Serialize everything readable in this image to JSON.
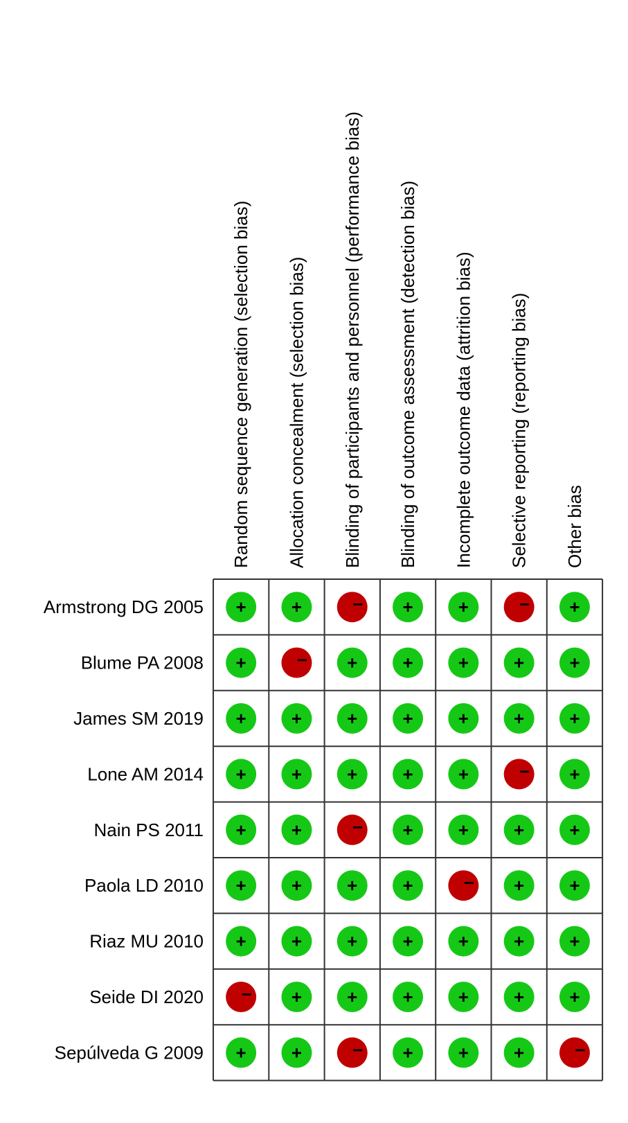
{
  "columns": [
    "Random sequence generation (selection bias)",
    "Allocation concealment (selection bias)",
    "Blinding of participants and personnel (performance bias)",
    "Blinding of outcome assessment (detection bias)",
    "Incomplete outcome data (attrition bias)",
    "Selective reporting (reporting bias)",
    "Other bias"
  ],
  "rows": [
    {
      "label": "Armstrong DG 2005",
      "cells": [
        "+",
        "+",
        "−",
        "+",
        "+",
        "−",
        "+"
      ]
    },
    {
      "label": "Blume PA 2008",
      "cells": [
        "+",
        "−",
        "+",
        "+",
        "+",
        "+",
        "+"
      ]
    },
    {
      "label": "James SM 2019",
      "cells": [
        "+",
        "+",
        "+",
        "+",
        "+",
        "+",
        "+"
      ]
    },
    {
      "label": "Lone AM 2014",
      "cells": [
        "+",
        "+",
        "+",
        "+",
        "+",
        "−",
        "+"
      ]
    },
    {
      "label": "Nain PS 2011",
      "cells": [
        "+",
        "+",
        "−",
        "+",
        "+",
        "+",
        "+"
      ]
    },
    {
      "label": "Paola LD 2010",
      "cells": [
        "+",
        "+",
        "+",
        "+",
        "−",
        "+",
        "+"
      ]
    },
    {
      "label": "Riaz MU 2010",
      "cells": [
        "+",
        "+",
        "+",
        "+",
        "+",
        "+",
        "+"
      ]
    },
    {
      "label": "Seide DI 2020",
      "cells": [
        "−",
        "+",
        "+",
        "+",
        "+",
        "+",
        "+"
      ]
    },
    {
      "label": "Sepúlveda G 2009",
      "cells": [
        "+",
        "+",
        "−",
        "+",
        "+",
        "+",
        "−"
      ]
    }
  ],
  "symbol_colors": {
    "+": "#16c816",
    "−": "#c00000"
  }
}
